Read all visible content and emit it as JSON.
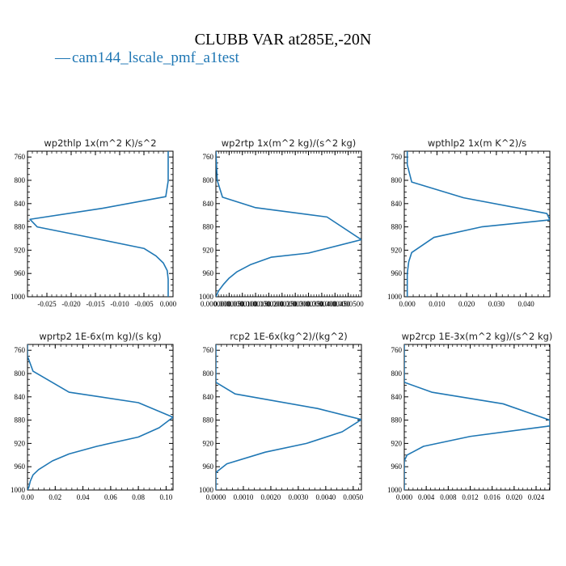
{
  "figure": {
    "title": "CLUBB VAR at285E,-20N",
    "legend": {
      "marker": "—",
      "label": "cam144_lscale_pmf_a1test"
    },
    "line_color": "#1f77b4"
  },
  "chart_data": [
    {
      "type": "line",
      "title": "wp2thlp  1x(m^2 K)/s^2",
      "xlim": [
        -0.029,
        0.001
      ],
      "ylim": [
        1000,
        750
      ],
      "x_ticks": [
        -0.025,
        -0.02,
        -0.015,
        -0.01,
        -0.005,
        0.0
      ],
      "x_tick_labels": [
        "-0.025",
        "-0.020",
        "-0.015",
        "-0.010",
        "-0.005",
        "0.000"
      ],
      "y_ticks": [
        760,
        800,
        840,
        880,
        920,
        960,
        1000
      ],
      "y_tick_labels": [
        "760",
        "800",
        "840",
        "880",
        "920",
        "960",
        "1000"
      ],
      "series": [
        {
          "x": [
            0.0,
            0.0,
            0.0,
            -0.0005,
            -0.0135,
            -0.0285,
            -0.027,
            -0.015,
            -0.005,
            -0.0025,
            -0.001,
            -0.0002,
            0.0,
            0.0
          ],
          "y": [
            750,
            775,
            801,
            828,
            848,
            867,
            880,
            900,
            917,
            930,
            942,
            955,
            970,
            1000
          ]
        }
      ]
    },
    {
      "type": "line",
      "title": "wp2rtp  1x(m^2 kg)/(s^2 kg)",
      "xlim": [
        0.0,
        5.5e-05
      ],
      "ylim": [
        1000,
        750
      ],
      "x_ticks": [
        0.0,
        5e-06,
        1e-05,
        1.5e-05,
        2e-05,
        2.5e-05,
        3e-05,
        3.5e-05,
        4e-05,
        4.5e-05,
        5e-05
      ],
      "x_tick_labels": [
        "0.0000000",
        "0.0000050",
        "0.0000100",
        "0.0000150",
        "0.0000200",
        "0.0000250",
        "0.0000300",
        "0.0000350",
        "0.0000400",
        "0.0000450",
        "0.0000500"
      ],
      "y_ticks": [
        760,
        800,
        840,
        880,
        920,
        960,
        1000
      ],
      "y_tick_labels": [
        "760",
        "800",
        "840",
        "880",
        "920",
        "960",
        "1000"
      ],
      "series": [
        {
          "x": [
            0.0,
            5e-07,
            2.5e-06,
            1.5e-05,
            4.2e-05,
            5.5e-05,
            3.5e-05,
            2.1e-05,
            1.3e-05,
            8e-06,
            5e-06,
            3e-06,
            1e-06,
            0.0
          ],
          "y": [
            750,
            800,
            829,
            847,
            863,
            902,
            925,
            932,
            945,
            957,
            968,
            978,
            990,
            1000
          ]
        }
      ]
    },
    {
      "type": "line",
      "title": "wpthlp2  1x(m K^2)/s",
      "xlim": [
        -0.001,
        0.048
      ],
      "ylim": [
        1000,
        750
      ],
      "x_ticks": [
        0.0,
        0.01,
        0.02,
        0.03,
        0.04
      ],
      "x_tick_labels": [
        "0.000",
        "0.010",
        "0.020",
        "0.030",
        "0.040"
      ],
      "y_ticks": [
        760,
        800,
        840,
        880,
        920,
        960,
        1000
      ],
      "y_tick_labels": [
        "760",
        "800",
        "840",
        "880",
        "920",
        "960",
        "1000"
      ],
      "series": [
        {
          "x": [
            0.0,
            0.0,
            0.0015,
            0.019,
            0.047,
            0.048,
            0.025,
            0.009,
            0.0015,
            0.0005,
            0.0,
            0.0
          ],
          "y": [
            750,
            773,
            803,
            830,
            857,
            868,
            880,
            898,
            924,
            940,
            960,
            1000
          ]
        }
      ]
    },
    {
      "type": "line",
      "title": "wprtp2  1E-6x(m kg)/(s kg)",
      "xlim": [
        0.0,
        0.105
      ],
      "ylim": [
        1000,
        750
      ],
      "x_ticks": [
        0.0,
        0.02,
        0.04,
        0.06,
        0.08,
        0.1
      ],
      "x_tick_labels": [
        "0.00",
        "0.02",
        "0.04",
        "0.06",
        "0.08",
        "0.10"
      ],
      "y_ticks": [
        760,
        800,
        840,
        880,
        920,
        960,
        1000
      ],
      "y_tick_labels": [
        "760",
        "800",
        "840",
        "880",
        "920",
        "960",
        "1000"
      ],
      "series": [
        {
          "x": [
            0.0,
            0.0,
            0.004,
            0.03,
            0.08,
            0.105,
            0.095,
            0.08,
            0.05,
            0.03,
            0.018,
            0.008,
            0.004,
            0.002,
            0.001,
            0.0
          ],
          "y": [
            750,
            770,
            796,
            832,
            850,
            875,
            893,
            909,
            925,
            938,
            950,
            965,
            974,
            985,
            995,
            1000
          ]
        }
      ]
    },
    {
      "type": "line",
      "title": "rcp2  1E-6x(kg^2)/(kg^2)",
      "xlim": [
        0.0,
        0.0053
      ],
      "ylim": [
        1000,
        750
      ],
      "x_ticks": [
        0.0,
        0.001,
        0.002,
        0.003,
        0.004,
        0.005
      ],
      "x_tick_labels": [
        "0.0000",
        "0.0010",
        "0.0020",
        "0.0030",
        "0.0040",
        "0.0050"
      ],
      "y_ticks": [
        760,
        800,
        840,
        880,
        920,
        960,
        1000
      ],
      "y_tick_labels": [
        "760",
        "800",
        "840",
        "880",
        "920",
        "960",
        "1000"
      ],
      "series": [
        {
          "x": [
            0.0,
            0.0,
            0.0007,
            0.0037,
            0.0053,
            0.0046,
            0.0033,
            0.0018,
            0.0004,
            0.0,
            0.0
          ],
          "y": [
            750,
            815,
            835,
            860,
            879,
            900,
            920,
            935,
            955,
            970,
            1000
          ]
        }
      ]
    },
    {
      "type": "line",
      "title": "wp2rcp  1E-3x(m^2 kg)/(s^2 kg)",
      "xlim": [
        0.0,
        0.0265
      ],
      "ylim": [
        1000,
        750
      ],
      "x_ticks": [
        0.0,
        0.004,
        0.008,
        0.012,
        0.016,
        0.02,
        0.024
      ],
      "x_tick_labels": [
        "0.000",
        "0.004",
        "0.008",
        "0.012",
        "0.016",
        "0.020",
        "0.024"
      ],
      "y_ticks": [
        760,
        800,
        840,
        880,
        920,
        960,
        1000
      ],
      "y_tick_labels": [
        "760",
        "800",
        "840",
        "880",
        "920",
        "960",
        "1000"
      ],
      "series": [
        {
          "x": [
            0.0,
            0.0,
            0.005,
            0.018,
            0.0265,
            0.0265,
            0.012,
            0.0035,
            0.0005,
            0.0,
            0.0
          ],
          "y": [
            750,
            815,
            832,
            852,
            880,
            890,
            908,
            925,
            940,
            950,
            1000
          ]
        }
      ]
    }
  ]
}
